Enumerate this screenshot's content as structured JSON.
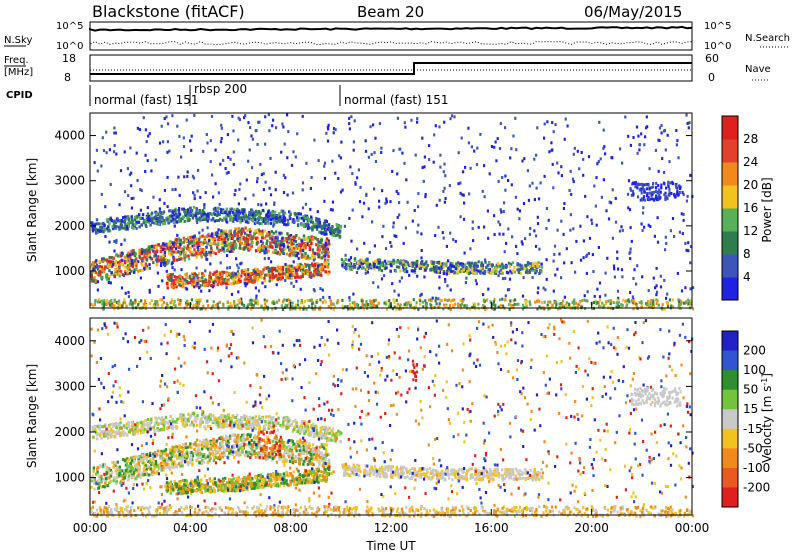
{
  "header": {
    "station": "Blackstone (fitACF)",
    "beam": "Beam 20",
    "date": "06/May/2015"
  },
  "top_panels": {
    "nsky_label": "N.Sky",
    "nsearch_label": "N.Search",
    "freq_label_line1": "Freq.",
    "freq_label_line2": "[MHz]",
    "nave_label": "Nave",
    "cpid_label": "CPID",
    "nsky_ticks": [
      "10^5",
      "10^0"
    ],
    "nsearch_ticks": [
      "10^5",
      "10^0"
    ],
    "freq_ticks": [
      "18",
      "8"
    ],
    "nave_ticks": [
      "60",
      "0"
    ],
    "cpid_segments": [
      {
        "label": "normal (fast) 151",
        "start_hour": 0
      },
      {
        "label": "rbsp 200",
        "start_hour": 4
      },
      {
        "label": "normal (fast) 151",
        "start_hour": 10
      }
    ]
  },
  "colors": {
    "power_scale": [
      "#1f22e0",
      "#3b55b8",
      "#2f7d4a",
      "#58b158",
      "#f2c21e",
      "#f08b1b",
      "#e2422b",
      "#e0201c"
    ],
    "velocity_scale": [
      "#2222c8",
      "#2f55d0",
      "#2e8f2e",
      "#72c43c",
      "#c9c9c9",
      "#f2c21e",
      "#f08b1b",
      "#e85a1f",
      "#e0201c"
    ]
  },
  "chart_data": [
    {
      "type": "heatmap",
      "panel": "power",
      "ylabel": "Slant Range [km]",
      "xlabel": "",
      "xlim": [
        0,
        24
      ],
      "ylim": [
        180,
        4500
      ],
      "x_ticks": [
        "00:00",
        "04:00",
        "08:00",
        "12:00",
        "16:00",
        "20:00",
        "00:00"
      ],
      "y_ticks": [
        1000,
        2000,
        3000,
        4000
      ],
      "colorbar": {
        "label": "Power [dB]",
        "ticks": [
          4,
          8,
          12,
          16,
          20,
          24,
          28
        ],
        "range": [
          0,
          32
        ]
      },
      "features": [
        {
          "name": "lower band",
          "x": [
            0,
            3.5,
            6,
            8,
            9.5
          ],
          "y": [
            1000,
            1500,
            1750,
            1600,
            1500
          ]
        },
        {
          "name": "upper band",
          "x": [
            0,
            4,
            8,
            10
          ],
          "y": [
            2000,
            2300,
            2200,
            1900
          ]
        },
        {
          "name": "morning band",
          "x": [
            3,
            6,
            9.5
          ],
          "y": [
            800,
            900,
            1100
          ]
        },
        {
          "name": "afternoon band",
          "x": [
            10,
            14,
            18
          ],
          "y": [
            1200,
            1100,
            1100
          ]
        }
      ]
    },
    {
      "type": "heatmap",
      "panel": "velocity",
      "ylabel": "Slant Range [km]",
      "xlabel": "Time UT",
      "xlim": [
        0,
        24
      ],
      "ylim": [
        180,
        4500
      ],
      "x_ticks": [
        "00:00",
        "04:00",
        "08:00",
        "12:00",
        "16:00",
        "20:00",
        "00:00"
      ],
      "y_ticks": [
        1000,
        2000,
        3000,
        4000
      ],
      "colorbar": {
        "label": "Velocity [m s^-1]",
        "ticks": [
          "200",
          "100",
          "50",
          "15",
          "-15",
          "-50",
          "-100",
          "-200"
        ]
      }
    }
  ]
}
